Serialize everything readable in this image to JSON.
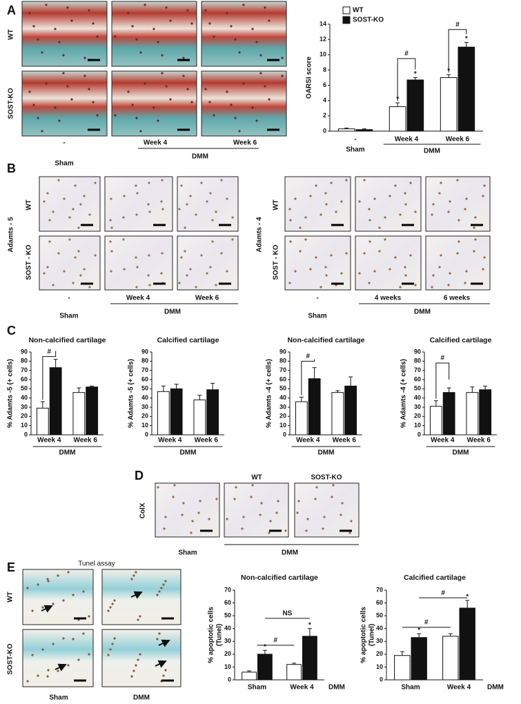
{
  "panel_labels": [
    "A",
    "B",
    "C",
    "D",
    "E"
  ],
  "panel_a": {
    "row_labels": [
      "WT",
      "SOST-KO"
    ],
    "col_labels": [
      "-",
      "Week 4",
      "Week 6"
    ],
    "group_labels": [
      "Sham",
      "DMM"
    ]
  },
  "panel_b": {
    "markers": [
      "Adamts - 5",
      "Adamts - 4"
    ],
    "left_row_labels": [
      "WT",
      "SOST - KO"
    ],
    "right_row_labels": [
      "WT",
      "SOST - KO"
    ],
    "left_cols": [
      "-",
      "Week 4",
      "Week 6"
    ],
    "left_groups": [
      "Sham",
      "DMM"
    ],
    "right_cols": [
      "-",
      "4 weeks",
      "6 weeks"
    ],
    "right_groups": [
      "Sham",
      "DMM"
    ]
  },
  "panel_d": {
    "marker": "ColX",
    "col_labels": [
      "WT",
      "SOST-KO"
    ],
    "group_labels": [
      "Sham",
      "DMM"
    ]
  },
  "panel_e": {
    "title": "Tunel assay",
    "row_labels": [
      "WT",
      "SOST-KO"
    ],
    "col_labels": [
      "Sham",
      "DMM"
    ]
  },
  "chart_data": [
    {
      "type": "bar",
      "y_label": [
        "OARSI score"
      ],
      "categories": [
        "-",
        "Week 4",
        "Week 6"
      ],
      "group_labels": [
        "Sham",
        "DMM"
      ],
      "series": [
        {
          "name": "WT",
          "color": "#ffffff",
          "values": [
            0.3,
            3.2,
            7.0
          ],
          "errors": [
            0.1,
            0.5,
            0.4
          ]
        },
        {
          "name": "SOST-KO",
          "color": "#111111",
          "values": [
            0.2,
            6.7,
            11.0
          ],
          "errors": [
            0.1,
            0.3,
            0.6
          ]
        }
      ],
      "ylim": [
        0,
        14
      ],
      "yticks": [
        0,
        2,
        4,
        6,
        8,
        10,
        12,
        14
      ],
      "annotations": [
        "#",
        "#",
        "*",
        "*",
        "*",
        "*"
      ]
    },
    {
      "type": "bar",
      "title": "Non-calcified cartilage",
      "y_label": [
        "% Adamts -5 (+ cells)"
      ],
      "categories": [
        "Week 4",
        "Week 6"
      ],
      "group_labels": [
        "DMM"
      ],
      "series": [
        {
          "color": "#ffffff",
          "values": [
            29,
            46
          ],
          "errors": [
            7,
            5
          ]
        },
        {
          "color": "#111111",
          "values": [
            73,
            52
          ],
          "errors": [
            9,
            1
          ]
        }
      ],
      "ylim": [
        0,
        90
      ],
      "yticks": [
        0,
        10,
        20,
        30,
        40,
        50,
        60,
        70,
        80,
        90
      ],
      "annotations": [
        "#"
      ]
    },
    {
      "type": "bar",
      "title": "Calcified cartilage",
      "y_label": [
        "% Adamts -5 (+ cells)"
      ],
      "categories": [
        "Week 4",
        "Week 6"
      ],
      "group_labels": [
        "DMM"
      ],
      "series": [
        {
          "color": "#ffffff",
          "values": [
            47,
            38
          ],
          "errors": [
            6,
            5
          ]
        },
        {
          "color": "#111111",
          "values": [
            50,
            49
          ],
          "errors": [
            5,
            7
          ]
        }
      ],
      "ylim": [
        0,
        90
      ],
      "yticks": [
        0,
        10,
        20,
        30,
        40,
        50,
        60,
        70,
        80,
        90
      ],
      "annotations": []
    },
    {
      "type": "bar",
      "title": "Non-calcified cartilage",
      "y_label": [
        "% Adamts -4 (+ cells)"
      ],
      "categories": [
        "Week 4",
        "Week 6"
      ],
      "group_labels": [
        "DMM"
      ],
      "series": [
        {
          "color": "#ffffff",
          "values": [
            36,
            46
          ],
          "errors": [
            5,
            2
          ]
        },
        {
          "color": "#111111",
          "values": [
            61,
            53
          ],
          "errors": [
            12,
            10
          ]
        }
      ],
      "ylim": [
        0,
        90
      ],
      "yticks": [
        0,
        10,
        20,
        30,
        40,
        50,
        60,
        70,
        80,
        90
      ],
      "annotations": [
        "#"
      ]
    },
    {
      "type": "bar",
      "title": "Calcified cartilage",
      "y_label": [
        "% Adamts -4 (+ cells)"
      ],
      "categories": [
        "Week 4",
        "Week 6"
      ],
      "group_labels": [
        "DMM"
      ],
      "series": [
        {
          "color": "#ffffff",
          "values": [
            31,
            46
          ],
          "errors": [
            6,
            6
          ]
        },
        {
          "color": "#111111",
          "values": [
            46,
            49
          ],
          "errors": [
            5,
            4
          ]
        }
      ],
      "ylim": [
        0,
        90
      ],
      "yticks": [
        0,
        10,
        20,
        30,
        40,
        50,
        60,
        70,
        80,
        90
      ],
      "annotations": [
        "#"
      ]
    },
    {
      "type": "bar",
      "title": "Non-calcified cartilage",
      "y_label": [
        "% apoptotic cells",
        "(Tunel)"
      ],
      "categories": [
        "Sham",
        "Week 4"
      ],
      "group_labels": [
        "DMM"
      ],
      "series": [
        {
          "color": "#ffffff",
          "values": [
            6,
            12
          ],
          "errors": [
            1,
            1
          ]
        },
        {
          "color": "#111111",
          "values": [
            20,
            34
          ],
          "errors": [
            3,
            6
          ]
        }
      ],
      "ylim": [
        0,
        70
      ],
      "yticks": [
        0,
        10,
        20,
        30,
        40,
        50,
        60,
        70
      ],
      "annotations": [
        "#",
        "NS",
        "*",
        "*"
      ]
    },
    {
      "type": "bar",
      "title": "Calcified cartilage",
      "y_label": [
        "% apoptotic cells",
        "(Tunel)"
      ],
      "categories": [
        "Sham",
        "Week 4"
      ],
      "group_labels": [
        "DMM"
      ],
      "series": [
        {
          "color": "#ffffff",
          "values": [
            19,
            34
          ],
          "errors": [
            3,
            2
          ]
        },
        {
          "color": "#111111",
          "values": [
            33,
            56
          ],
          "errors": [
            3,
            6
          ]
        }
      ],
      "ylim": [
        0,
        70
      ],
      "yticks": [
        0,
        10,
        20,
        30,
        40,
        50,
        60,
        70
      ],
      "annotations": [
        "#",
        "#",
        "*",
        "*"
      ]
    }
  ]
}
